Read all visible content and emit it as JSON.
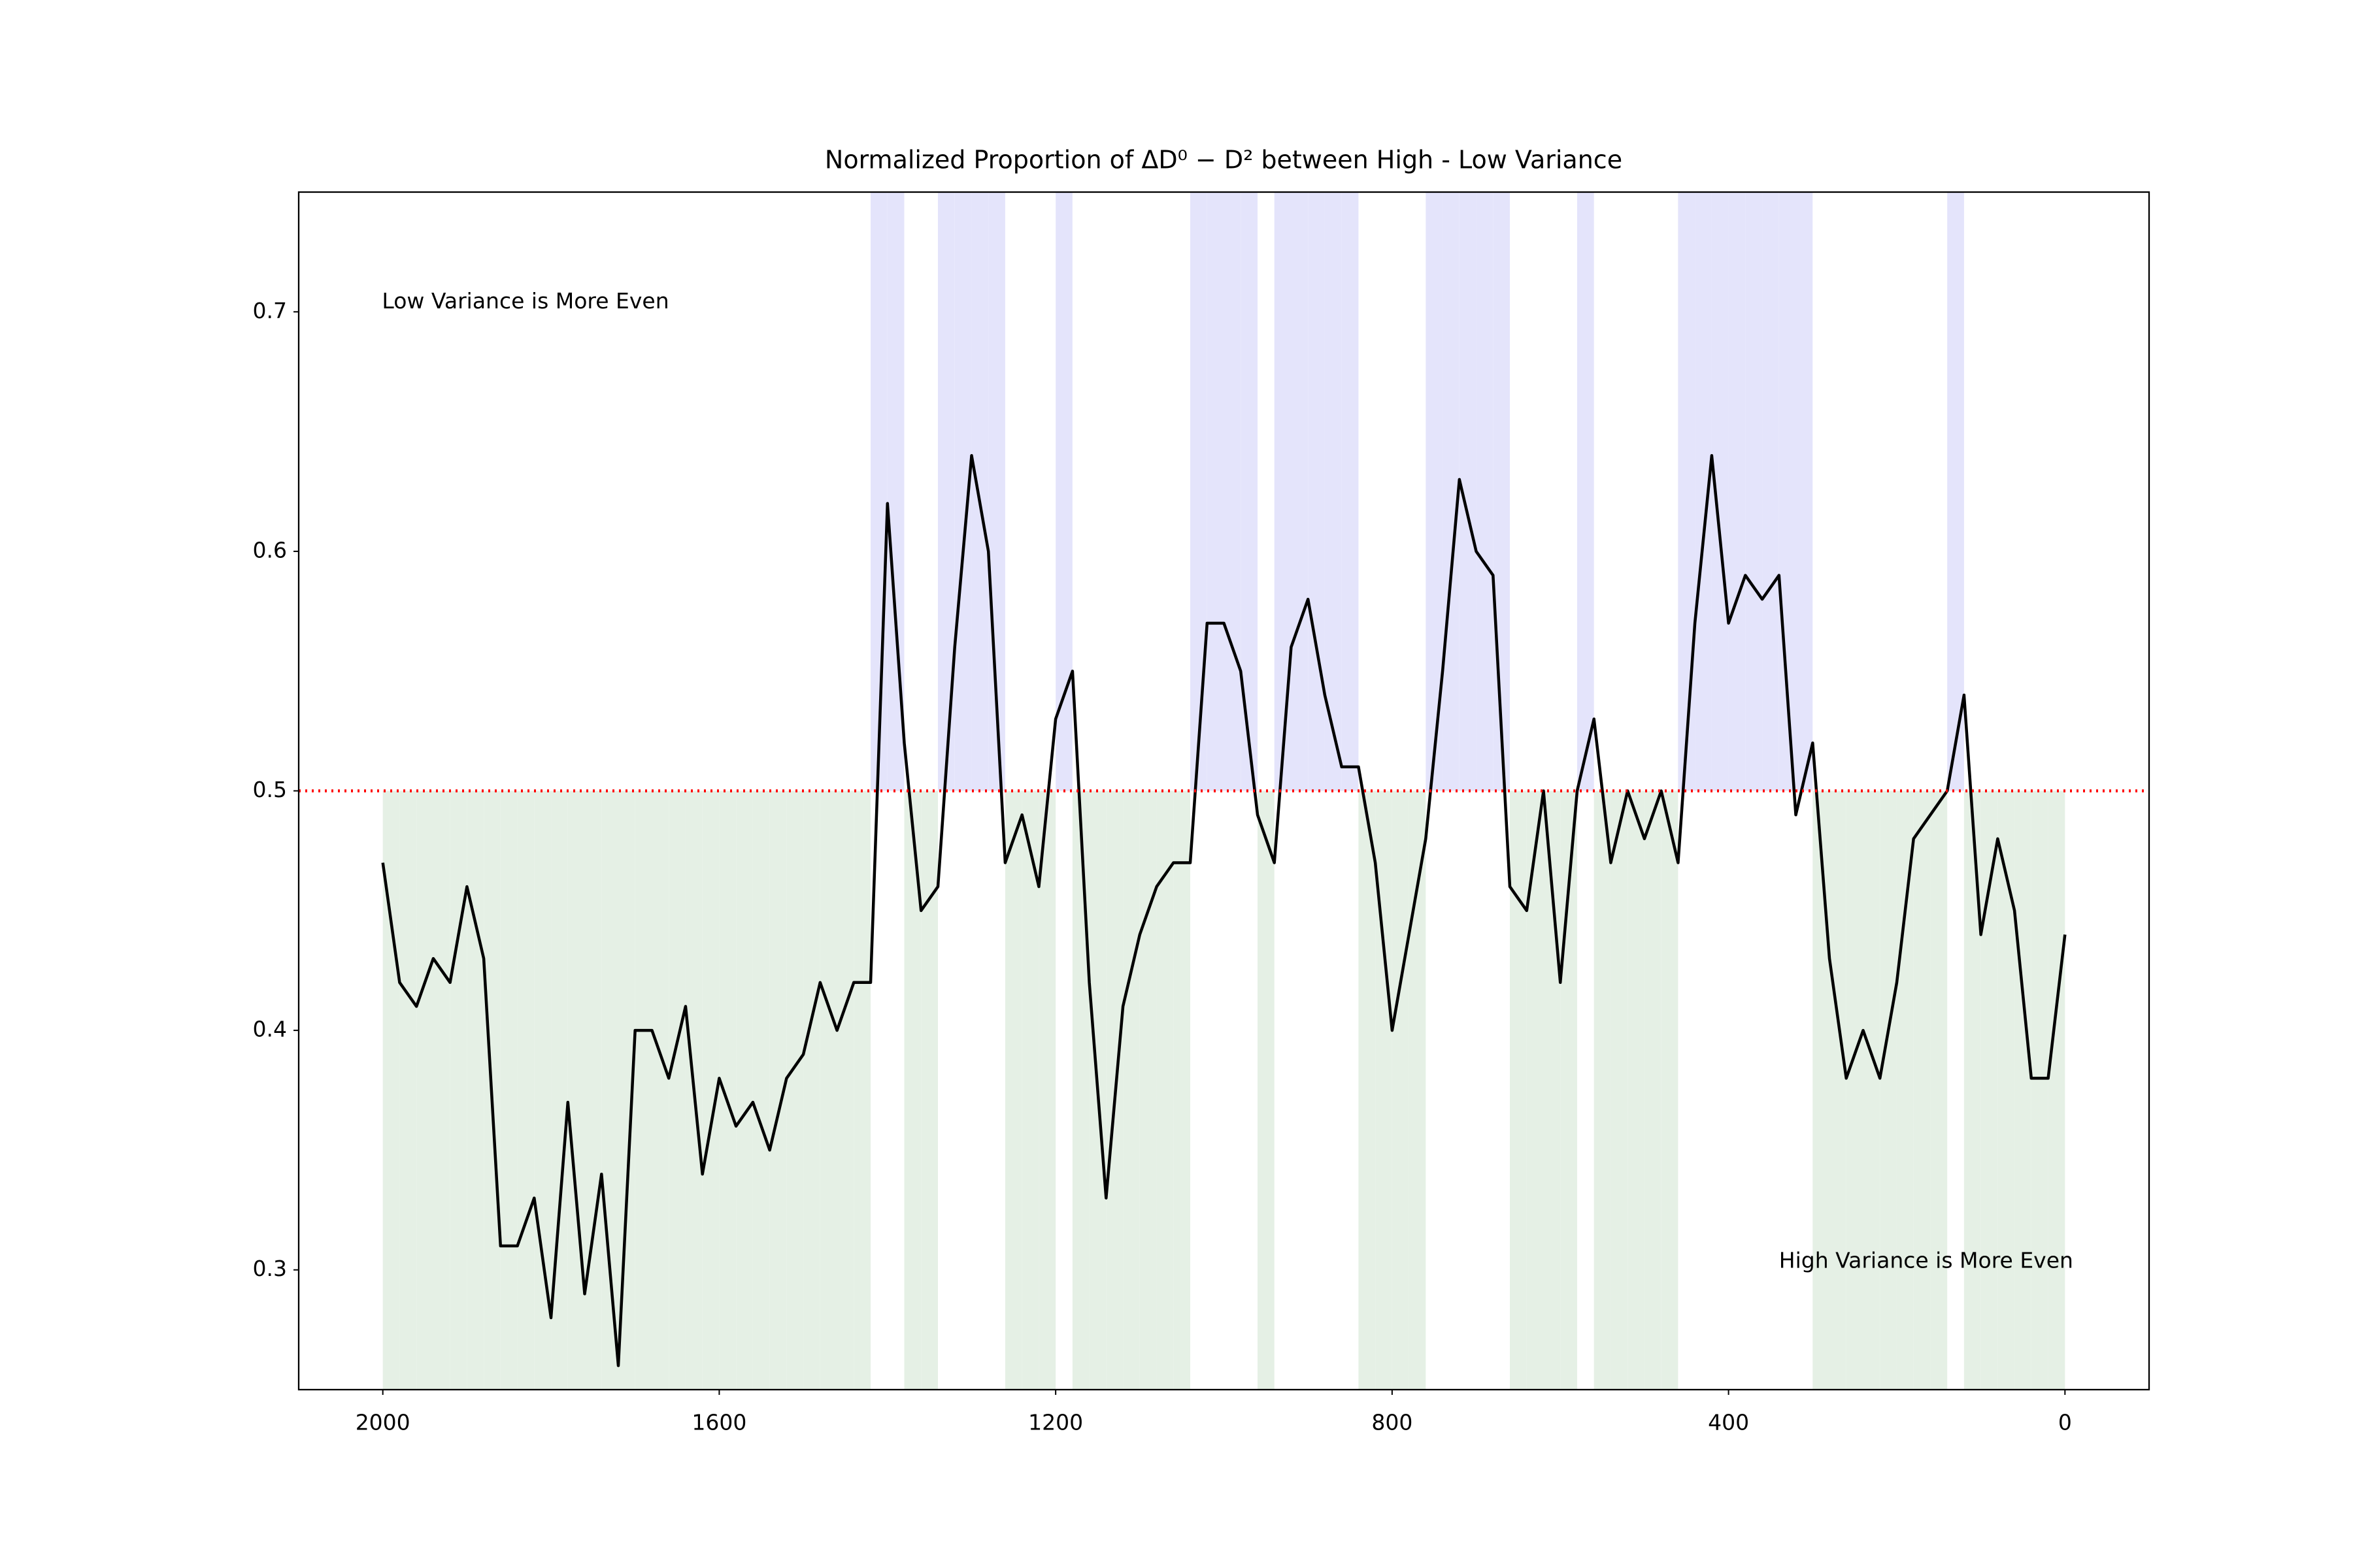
{
  "chart_data": {
    "type": "line",
    "title": "Normalized Proportion of ΔD⁰ − D² between High - Low Variance",
    "annotations": [
      "Low Variance is More Even",
      "High Variance is More Even"
    ],
    "x": [
      2000,
      1980,
      1960,
      1940,
      1920,
      1900,
      1880,
      1860,
      1840,
      1820,
      1800,
      1780,
      1760,
      1740,
      1720,
      1700,
      1680,
      1660,
      1640,
      1620,
      1600,
      1580,
      1560,
      1540,
      1520,
      1500,
      1480,
      1460,
      1440,
      1420,
      1400,
      1380,
      1360,
      1340,
      1320,
      1300,
      1280,
      1260,
      1240,
      1220,
      1200,
      1180,
      1160,
      1140,
      1120,
      1100,
      1080,
      1060,
      1040,
      1020,
      1000,
      980,
      960,
      940,
      920,
      900,
      880,
      860,
      840,
      820,
      800,
      780,
      760,
      740,
      720,
      700,
      680,
      660,
      640,
      620,
      600,
      580,
      560,
      540,
      520,
      500,
      480,
      460,
      440,
      420,
      400,
      380,
      360,
      340,
      320,
      300,
      280,
      260,
      240,
      220,
      200,
      180,
      160,
      140,
      120,
      100,
      80,
      60,
      40,
      20,
      0
    ],
    "series": [
      {
        "color": "#000000",
        "values": [
          0.47,
          0.42,
          0.41,
          0.43,
          0.42,
          0.46,
          0.43,
          0.31,
          0.31,
          0.33,
          0.28,
          0.37,
          0.29,
          0.34,
          0.26,
          0.4,
          0.4,
          0.38,
          0.41,
          0.34,
          0.38,
          0.36,
          0.37,
          0.35,
          0.38,
          0.39,
          0.42,
          0.4,
          0.42,
          0.42,
          0.62,
          0.52,
          0.45,
          0.46,
          0.56,
          0.64,
          0.6,
          0.47,
          0.49,
          0.46,
          0.53,
          0.55,
          0.42,
          0.33,
          0.41,
          0.44,
          0.46,
          0.47,
          0.47,
          0.57,
          0.57,
          0.55,
          0.49,
          0.47,
          0.56,
          0.58,
          0.54,
          0.51,
          0.51,
          0.47,
          0.4,
          0.44,
          0.48,
          0.55,
          0.63,
          0.6,
          0.59,
          0.46,
          0.45,
          0.5,
          0.42,
          0.5,
          0.53,
          0.47,
          0.5,
          0.48,
          0.5,
          0.47,
          0.57,
          0.64,
          0.57,
          0.59,
          0.58,
          0.59,
          0.49,
          0.52,
          0.43,
          0.38,
          0.4,
          0.38,
          0.42,
          0.48,
          0.49,
          0.5,
          0.54,
          0.44,
          0.48,
          0.45,
          0.38,
          0.38,
          0.44
        ]
      }
    ],
    "reference_line": {
      "value": 0.5,
      "color": "#ff0000",
      "above_color": "#e4e4fb",
      "below_color": "#e5f0e5"
    },
    "xlim": [
      2100,
      -100
    ],
    "ylim": [
      0.25,
      0.75
    ],
    "xticks": [
      2000,
      1600,
      1200,
      800,
      400,
      0
    ],
    "yticks": [
      0.3,
      0.4,
      0.5,
      0.6,
      0.7
    ],
    "grid": false
  }
}
